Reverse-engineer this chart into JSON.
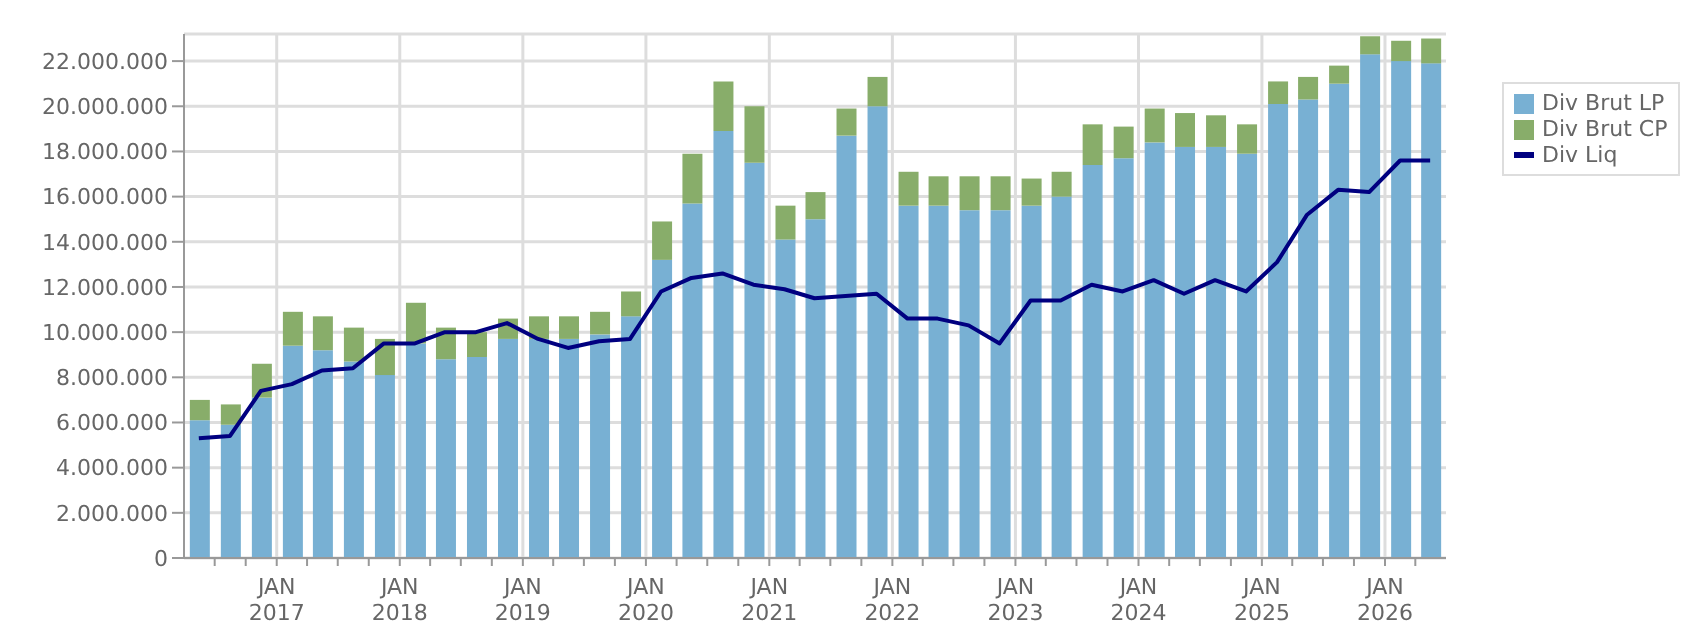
{
  "chart_data": {
    "type": "bar",
    "stacked": true,
    "x": [
      "2016-05-15",
      "2016-08-15",
      "2016-11-15",
      "2017-02-15",
      "2017-05-15",
      "2017-08-15",
      "2017-11-15",
      "2018-02-15",
      "2018-05-15",
      "2018-08-15",
      "2018-11-15",
      "2019-02-15",
      "2019-05-15",
      "2019-08-15",
      "2019-11-15",
      "2020-02-15",
      "2020-05-15",
      "2020-08-15",
      "2020-11-15",
      "2021-02-15",
      "2021-05-15",
      "2021-08-15",
      "2021-11-15",
      "2022-02-15",
      "2022-05-15",
      "2022-08-15",
      "2022-11-15",
      "2023-02-15",
      "2023-05-15",
      "2023-08-15",
      "2023-11-15",
      "2024-02-15",
      "2024-05-15",
      "2024-08-15",
      "2024-11-15",
      "2025-02-15",
      "2025-05-15",
      "2025-08-15",
      "2025-11-15",
      "2026-02-15",
      "2026-05-15"
    ],
    "series": [
      {
        "name": "Div Brut LP",
        "color": "#78b0d3",
        "values": [
          6100000,
          5900000,
          7100000,
          9400000,
          9200000,
          8700000,
          8100000,
          9500000,
          8800000,
          8900000,
          9700000,
          9700000,
          9700000,
          9900000,
          10700000,
          13200000,
          15700000,
          18900000,
          17500000,
          14100000,
          15000000,
          18700000,
          20000000,
          15600000,
          15600000,
          15400000,
          15400000,
          15600000,
          16000000,
          17400000,
          17700000,
          18400000,
          18200000,
          18200000,
          17900000,
          20100000,
          20300000,
          21000000,
          22300000,
          22000000,
          21900000
        ]
      },
      {
        "name": "Div Brut CP",
        "color": "#88ad6a",
        "values": [
          900000,
          900000,
          1500000,
          1500000,
          1500000,
          1500000,
          1600000,
          1800000,
          1400000,
          1100000,
          900000,
          1000000,
          1000000,
          1000000,
          1100000,
          1700000,
          2200000,
          2200000,
          2500000,
          1500000,
          1200000,
          1200000,
          1300000,
          1500000,
          1300000,
          1500000,
          1500000,
          1200000,
          1100000,
          1800000,
          1400000,
          1500000,
          1500000,
          1400000,
          1300000,
          1000000,
          1000000,
          800000,
          800000,
          900000,
          1100000
        ]
      },
      {
        "name": "Div Liq",
        "color": "#000080",
        "type": "line",
        "values": [
          5300000,
          5400000,
          7400000,
          7700000,
          8300000,
          8400000,
          9500000,
          9500000,
          10000000,
          10000000,
          10400000,
          9700000,
          9300000,
          9600000,
          9700000,
          11800000,
          12400000,
          12600000,
          12100000,
          11900000,
          11500000,
          11600000,
          11700000,
          10600000,
          10600000,
          10300000,
          9500000,
          11400000,
          11400000,
          12100000,
          11800000,
          12300000,
          11700000,
          12300000,
          11800000,
          13100000,
          15200000,
          16300000,
          16200000,
          17600000,
          17600000
        ]
      }
    ],
    "xlim": [
      "2016-04-01",
      "2026-07-01"
    ],
    "xticks": [
      {
        "value": "2016-07-01",
        "label": null
      },
      {
        "value": "2016-10-01",
        "label": null
      },
      {
        "value": "2017-01-01",
        "label": "JAN 2017"
      },
      {
        "value": "2017-04-01",
        "label": null
      },
      {
        "value": "2017-07-01",
        "label": null
      },
      {
        "value": "2017-10-01",
        "label": null
      },
      {
        "value": "2018-01-01",
        "label": "JAN 2018"
      },
      {
        "value": "2018-04-01",
        "label": null
      },
      {
        "value": "2018-07-01",
        "label": null
      },
      {
        "value": "2018-10-01",
        "label": null
      },
      {
        "value": "2019-01-01",
        "label": "JAN 2019"
      },
      {
        "value": "2019-04-01",
        "label": null
      },
      {
        "value": "2019-07-01",
        "label": null
      },
      {
        "value": "2019-10-01",
        "label": null
      },
      {
        "value": "2020-01-01",
        "label": "JAN 2020"
      },
      {
        "value": "2020-04-01",
        "label": null
      },
      {
        "value": "2020-07-01",
        "label": null
      },
      {
        "value": "2020-10-01",
        "label": null
      },
      {
        "value": "2021-01-01",
        "label": "JAN 2021"
      },
      {
        "value": "2021-04-01",
        "label": null
      },
      {
        "value": "2021-07-01",
        "label": null
      },
      {
        "value": "2021-10-01",
        "label": null
      },
      {
        "value": "2022-01-01",
        "label": "JAN 2022"
      },
      {
        "value": "2022-04-01",
        "label": null
      },
      {
        "value": "2022-07-01",
        "label": null
      },
      {
        "value": "2022-10-01",
        "label": null
      },
      {
        "value": "2023-01-01",
        "label": "JAN 2023"
      },
      {
        "value": "2023-04-01",
        "label": null
      },
      {
        "value": "2023-07-01",
        "label": null
      },
      {
        "value": "2023-10-01",
        "label": null
      },
      {
        "value": "2024-01-01",
        "label": "JAN 2024"
      },
      {
        "value": "2024-04-01",
        "label": null
      },
      {
        "value": "2024-07-01",
        "label": null
      },
      {
        "value": "2024-10-01",
        "label": null
      },
      {
        "value": "2025-01-01",
        "label": "JAN 2025"
      },
      {
        "value": "2025-04-01",
        "label": null
      },
      {
        "value": "2025-07-01",
        "label": null
      },
      {
        "value": "2025-10-01",
        "label": null
      },
      {
        "value": "2026-01-01",
        "label": "JAN 2026"
      },
      {
        "value": "2026-04-01",
        "label": null
      }
    ],
    "ylim": [
      0,
      23200000
    ],
    "yticks": [
      {
        "value": 0,
        "label": "0"
      },
      {
        "value": 2000000,
        "label": "2.000.000"
      },
      {
        "value": 4000000,
        "label": "4.000.000"
      },
      {
        "value": 6000000,
        "label": "6.000.000"
      },
      {
        "value": 8000000,
        "label": "8.000.000"
      },
      {
        "value": 10000000,
        "label": "10.000.000"
      },
      {
        "value": 12000000,
        "label": "12.000.000"
      },
      {
        "value": 14000000,
        "label": "14.000.000"
      },
      {
        "value": 16000000,
        "label": "16.000.000"
      },
      {
        "value": 18000000,
        "label": "18.000.000"
      },
      {
        "value": 20000000,
        "label": "20.000.000"
      },
      {
        "value": 22000000,
        "label": "22.000.000"
      }
    ],
    "grid": true,
    "legend": "top right",
    "marker": "none",
    "line_style": "solid"
  }
}
